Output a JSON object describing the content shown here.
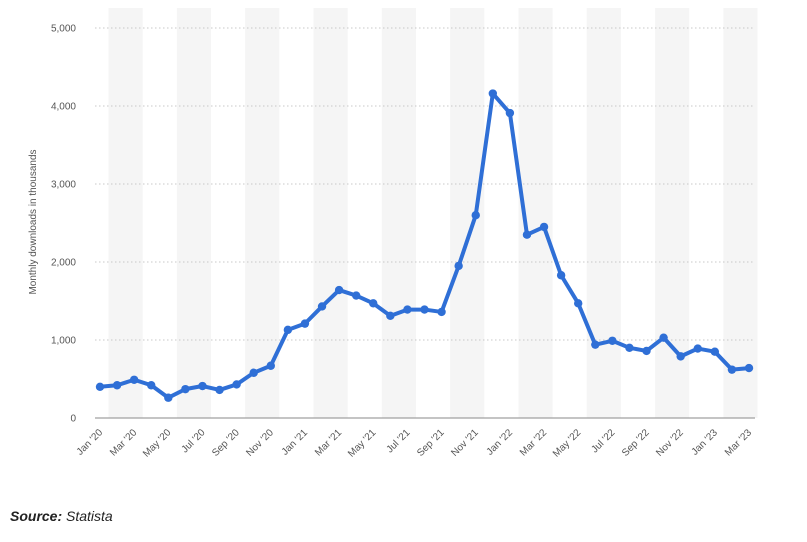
{
  "source": {
    "label": "Source:",
    "text": "Statista"
  },
  "chart_data": {
    "type": "line",
    "ylabel": "Monthly downloads in thousands",
    "ylim": [
      0,
      5000
    ],
    "yticks": [
      0,
      1000,
      2000,
      3000,
      4000,
      5000
    ],
    "ytick_labels": [
      "0",
      "1,000",
      "2,000",
      "3,000",
      "4,000",
      "5,000"
    ],
    "grid": "horizontal dotted",
    "line_color": "#2f6fd6",
    "x": [
      "Jan '20",
      "Feb '20",
      "Mar '20",
      "Apr '20",
      "May '20",
      "Jun '20",
      "Jul '20",
      "Aug '20",
      "Sep '20",
      "Oct '20",
      "Nov '20",
      "Dec '20",
      "Jan '21",
      "Feb '21",
      "Mar '21",
      "Apr '21",
      "May '21",
      "Jun '21",
      "Jul '21",
      "Aug '21",
      "Sep '21",
      "Oct '21",
      "Nov '21",
      "Dec '21",
      "Jan '22",
      "Feb '22",
      "Mar '22",
      "Apr '22",
      "May '22",
      "Jun '22",
      "Jul '22",
      "Aug '22",
      "Sep '22",
      "Oct '22",
      "Nov '22",
      "Dec '22",
      "Jan '23",
      "Feb '23",
      "Mar '23"
    ],
    "xtick_labels": [
      "Jan '20",
      "Mar '20",
      "May '20",
      "Jul '20",
      "Sep '20",
      "Nov '20",
      "Jan '21",
      "Mar '21",
      "May '21",
      "Jul '21",
      "Sep '21",
      "Nov '21",
      "Jan '22",
      "Mar '22",
      "May '22",
      "Jul '22",
      "Sep '22",
      "Nov '22",
      "Jan '23",
      "Mar '23"
    ],
    "series": [
      {
        "values": [
          400,
          420,
          490,
          420,
          260,
          370,
          410,
          360,
          430,
          580,
          670,
          1130,
          1210,
          1430,
          1640,
          1570,
          1470,
          1310,
          1390,
          1390,
          1360,
          1950,
          2600,
          4160,
          3910,
          2350,
          2450,
          1830,
          1470,
          940,
          990,
          900,
          860,
          1030,
          790,
          890,
          850,
          620,
          640
        ]
      }
    ]
  }
}
